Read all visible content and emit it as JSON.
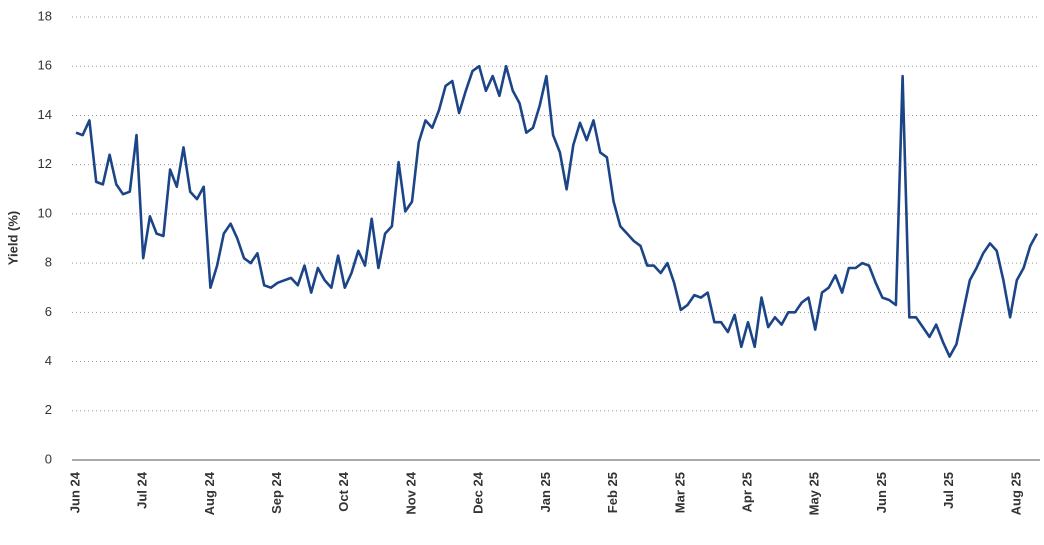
{
  "chart_data": {
    "type": "line",
    "y_label": "Yield (%)",
    "categories": [
      "Jun 24",
      null,
      null,
      null,
      null,
      null,
      null,
      null,
      null,
      null,
      "Jul 24",
      null,
      null,
      null,
      null,
      null,
      null,
      null,
      null,
      null,
      "Aug 24",
      null,
      null,
      null,
      null,
      null,
      null,
      null,
      null,
      null,
      "Sep 24",
      null,
      null,
      null,
      null,
      null,
      null,
      null,
      null,
      null,
      "Oct 24",
      null,
      null,
      null,
      null,
      null,
      null,
      null,
      null,
      null,
      "Nov 24",
      null,
      null,
      null,
      null,
      null,
      null,
      null,
      null,
      null,
      "Dec 24",
      null,
      null,
      null,
      null,
      null,
      null,
      null,
      null,
      null,
      "Jan 25",
      null,
      null,
      null,
      null,
      null,
      null,
      null,
      null,
      null,
      "Feb 25",
      null,
      null,
      null,
      null,
      null,
      null,
      null,
      null,
      null,
      "Mar 25",
      null,
      null,
      null,
      null,
      null,
      null,
      null,
      null,
      null,
      "Apr 25",
      null,
      null,
      null,
      null,
      null,
      null,
      null,
      null,
      null,
      "May 25",
      null,
      null,
      null,
      null,
      null,
      null,
      null,
      null,
      null,
      "Jun 25",
      null,
      null,
      null,
      null,
      null,
      null,
      null,
      null,
      null,
      "Jul 25",
      null,
      null,
      null,
      null,
      null,
      null,
      null,
      null,
      null,
      "Aug 25",
      null,
      null,
      null
    ],
    "series": [
      {
        "name": "Yield",
        "color": "#1c4587",
        "values": [
          13.3,
          13.2,
          13.8,
          11.3,
          11.2,
          12.4,
          11.2,
          10.8,
          10.9,
          13.2,
          8.2,
          9.9,
          9.2,
          9.1,
          11.8,
          11.1,
          12.7,
          10.9,
          10.6,
          11.1,
          7.0,
          7.9,
          9.2,
          9.6,
          9.0,
          8.2,
          8.0,
          8.4,
          7.1,
          7.0,
          7.2,
          7.3,
          7.4,
          7.1,
          7.9,
          6.8,
          7.8,
          7.3,
          7.0,
          8.3,
          7.0,
          7.6,
          8.5,
          7.9,
          9.8,
          7.8,
          9.2,
          9.5,
          12.1,
          10.1,
          10.5,
          12.9,
          13.8,
          13.5,
          14.2,
          15.2,
          15.4,
          14.1,
          15.0,
          15.8,
          16.0,
          15.0,
          15.6,
          14.8,
          16.0,
          15.0,
          14.5,
          13.3,
          13.5,
          14.4,
          15.6,
          13.2,
          12.5,
          11.0,
          12.8,
          13.7,
          13.0,
          13.8,
          12.5,
          12.3,
          10.5,
          9.5,
          9.2,
          8.9,
          8.7,
          7.9,
          7.9,
          7.6,
          8.0,
          7.2,
          6.1,
          6.3,
          6.7,
          6.6,
          6.8,
          5.6,
          5.6,
          5.2,
          5.9,
          4.6,
          5.6,
          4.6,
          6.6,
          5.4,
          5.8,
          5.5,
          6.0,
          6.0,
          6.4,
          6.6,
          5.3,
          6.8,
          7.0,
          7.5,
          6.8,
          7.8,
          7.8,
          8.0,
          7.9,
          7.2,
          6.6,
          6.5,
          6.3,
          15.6,
          5.8,
          5.8,
          5.4,
          5.0,
          5.5,
          4.8,
          4.2,
          4.7,
          6.0,
          7.3,
          7.8,
          8.4,
          8.8,
          8.5,
          7.3,
          5.8,
          7.3,
          7.8,
          8.7,
          9.2
        ]
      }
    ],
    "ylim": [
      0,
      18
    ],
    "yticks": [
      0,
      2,
      4,
      6,
      8,
      10,
      12,
      14,
      16,
      18
    ],
    "grid": true
  }
}
